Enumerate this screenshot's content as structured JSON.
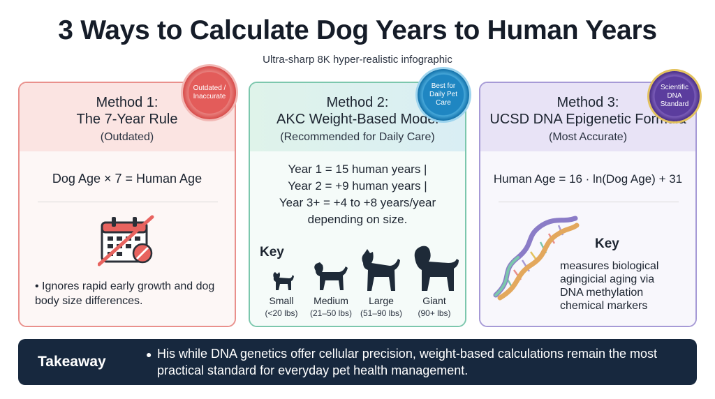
{
  "title": "3 Ways to Calculate Dog Years to Human Years",
  "subtitle": "Ultra-sharp 8K hyper-realistic infographic",
  "method1": {
    "heading": "Method 1:",
    "name": "The 7-Year Rule",
    "tag": "(Outdated)",
    "badge": "Outdated / Inaccurate",
    "formula": "Dog Age × 7 = Human Age",
    "bullet": "Ignores rapid early growth and dog body size differences.",
    "icon": "crossed-out-calendar-icon",
    "color": "#e9908c"
  },
  "method2": {
    "heading": "Method 2:",
    "name": "AKC Weight-Based Model",
    "tag": "(Recommended for Daily Care)",
    "badge": "Best for Daily Pet Care",
    "rules": [
      "Year 1 = 15 human years |",
      "Year 2 = +9 human years |",
      "Year 3+ = +4 to +8 years/year",
      "depending on size."
    ],
    "key_label": "Key",
    "sizes": [
      {
        "name": "Small",
        "range": "(<20 lbs)"
      },
      {
        "name": "Medium",
        "range": "(21–50 lbs)"
      },
      {
        "name": "Large",
        "range": "(51–90 lbs)"
      },
      {
        "name": "Giant",
        "range": "(90+ lbs)"
      }
    ],
    "color": "#7cc7ad"
  },
  "method3": {
    "heading": "Method 3:",
    "name": "UCSD DNA Epigenetic Formula",
    "tag": "(Most Accurate)",
    "badge": "Scientific DNA Standard",
    "formula": "Human Age = 16 · ln(Dog Age) + 31",
    "key_label": "Key",
    "description": [
      "measures biological",
      "agingicial aging via",
      "DNA methylation",
      "chemical markers"
    ],
    "icon": "dna-helix-icon",
    "color": "#a69ad6"
  },
  "takeaway": {
    "label": "Takeaway",
    "text": "His while DNA genetics offer cellular precision, weight-based calculations remain the most practical standard for everyday pet health management."
  }
}
